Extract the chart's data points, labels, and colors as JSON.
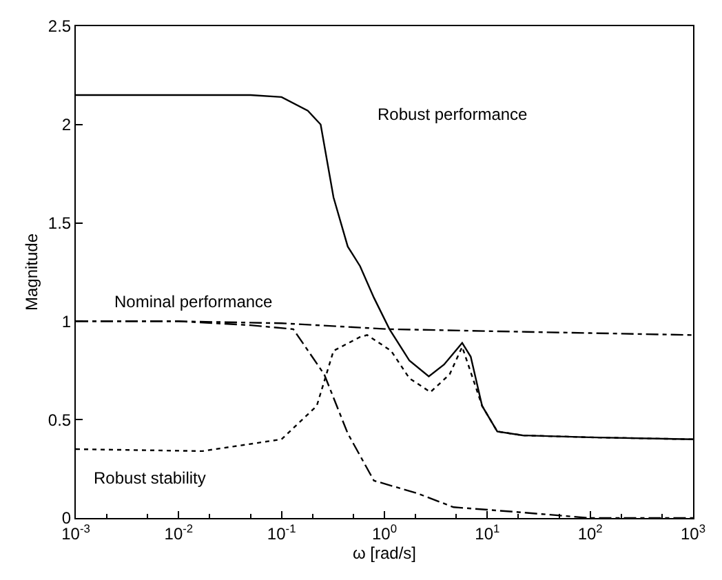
{
  "chart_data": {
    "type": "line",
    "xlabel": "ω [rad/s]",
    "ylabel": "Magnitude",
    "log": "x",
    "marker": "none",
    "xlim": [
      0.001,
      1000
    ],
    "ylim": [
      0,
      2.5
    ],
    "xticks": [
      {
        "value": 0.001,
        "label": "10$^{-3}$"
      },
      {
        "value": 0.01,
        "label": "10$^{-2}$"
      },
      {
        "value": 0.1,
        "label": "10$^{-1}$"
      },
      {
        "value": 1,
        "label": "10$^{0}$"
      },
      {
        "value": 10,
        "label": "10$^{1}$"
      },
      {
        "value": 100,
        "label": "10$^{2}$"
      },
      {
        "value": 1000,
        "label": "10$^{3}$"
      }
    ],
    "yticks": [
      0,
      0.5,
      1,
      1.5,
      2,
      2.5
    ],
    "series": [
      {
        "color": "#000000",
        "line_style": "solid",
        "x": [
          0.001,
          0.01,
          0.05,
          0.1,
          0.18,
          0.24,
          0.32,
          0.44,
          0.58,
          0.79,
          1.12,
          1.75,
          2.7,
          3.8,
          5.7,
          6.9,
          8.9,
          12.5,
          22,
          100,
          1000
        ],
        "values": [
          2.15,
          2.15,
          2.15,
          2.14,
          2.07,
          2.0,
          1.63,
          1.38,
          1.28,
          1.12,
          0.96,
          0.8,
          0.72,
          0.78,
          0.89,
          0.82,
          0.57,
          0.44,
          0.42,
          0.41,
          0.4
        ]
      },
      {
        "color": "#000000",
        "line_style": "dashdot",
        "x": [
          0.001,
          0.01,
          0.1,
          1.1,
          10,
          100,
          1000
        ],
        "values": [
          1.0,
          1.0,
          0.99,
          0.96,
          0.95,
          0.94,
          0.93
        ]
      },
      {
        "color": "#000000",
        "line_style": "dotted",
        "x": [
          0.001,
          0.017,
          0.1,
          0.22,
          0.32,
          0.58,
          0.68,
          1.16,
          1.75,
          2.8,
          4.3,
          5.7,
          8.9,
          12.5,
          22,
          100,
          1000
        ],
        "values": [
          0.35,
          0.34,
          0.4,
          0.57,
          0.85,
          0.92,
          0.93,
          0.85,
          0.71,
          0.64,
          0.73,
          0.87,
          0.57,
          0.44,
          0.42,
          0.41,
          0.4
        ]
      },
      {
        "color": "#000000",
        "line_style": "dashdot",
        "x": [
          0.001,
          0.01,
          0.05,
          0.13,
          0.26,
          0.44,
          0.79,
          2.1,
          4.7,
          20,
          100,
          1000
        ],
        "values": [
          1.0,
          1.0,
          0.98,
          0.96,
          0.73,
          0.43,
          0.19,
          0.125,
          0.055,
          0.03,
          0.0,
          0.0
        ]
      }
    ],
    "annotations": [
      "Robust performance",
      "Nominal performance",
      "Robust stability"
    ]
  }
}
